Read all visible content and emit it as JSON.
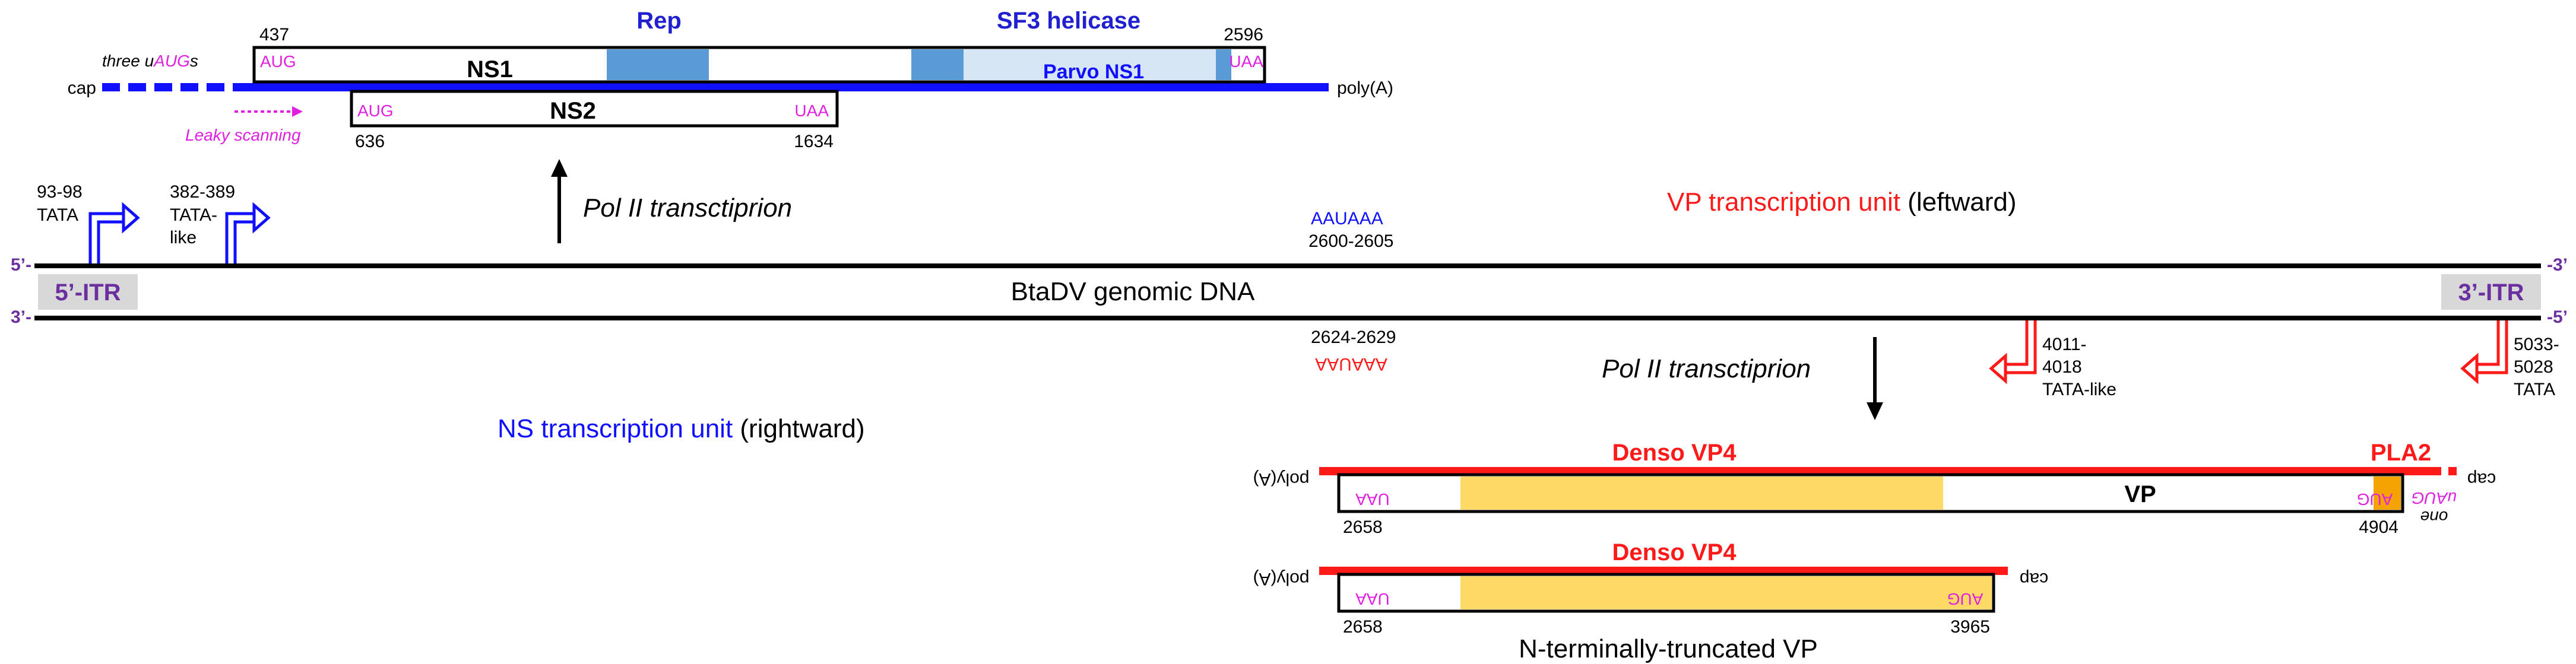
{
  "colors": {
    "black": "#000000",
    "blue": "#1010ff",
    "blue_dark": "#2020d0",
    "red": "#ff1a1a",
    "magenta": "#e020e0",
    "purple": "#6b2fa0",
    "itr_fill": "#d8d8d8",
    "ns1_domain": "#5b9bd5",
    "parvo_fill": "#d6e6f5",
    "vp_fill": "#ffd966",
    "orange": "#f4a300"
  },
  "ns": {
    "num_437": "437",
    "num_2596": "2596",
    "num_636": "636",
    "num_1634": "1634",
    "rep": "Rep",
    "sf3": "SF3 helicase",
    "ns1": "NS1",
    "ns2": "NS2",
    "parvo": "Parvo NS1",
    "aug1": "AUG",
    "uaa1": "UAA",
    "aug2": "AUG",
    "uaa2": "UAA",
    "cap": "cap",
    "polya": "poly(A)",
    "three_uaugs_prefix": "three u",
    "three_uaugs_aug": "AUG",
    "three_uaugs_suffix": "s",
    "leaky": "Leaky scanning",
    "pol2": "Pol II transctiprion"
  },
  "genome": {
    "tata1_pos": "93-98",
    "tata1_label": "TATA",
    "tata2_pos": "382-389",
    "tata2_line1": "TATA-",
    "tata2_line2": "like",
    "aauaaa_fwd": "AAUAAA",
    "aauaaa_fwd_pos": "2600-2605",
    "vp_unit_colored": "VP  transcription unit",
    "vp_unit_rest": " (leftward)",
    "ns_unit_colored": "NS  transcription unit",
    "ns_unit_rest": " (rightward)",
    "five_top": "5’-",
    "three_bottom_left": "3’-",
    "top_right_end": "-3’",
    "bottom_right_end": "-5’",
    "itr_left": "5’-ITR",
    "itr_right": "3’-ITR",
    "genome_label": "BtaDV genomic DNA",
    "aauaaa_rev_pos": "2624-2629",
    "aauaaa_rev": "AAUAAA",
    "tata3_l1": "4011-",
    "tata3_l2": "4018",
    "tata3_l3": "TATA-like",
    "tata4_l1": "5033-",
    "tata4_l2": "5028",
    "tata4_l3": "TATA",
    "pol2_vp": "Pol II transctiprion"
  },
  "vp": {
    "denso_vp4": "Denso VP4",
    "pla2": "PLA2",
    "vp_label": "VP",
    "polya": "poly(A)",
    "cap": "cap",
    "uaa": "UAA",
    "aug": "AUG",
    "one_uaug_l1": "one",
    "one_uaug_l2": "uAUG",
    "num_2658": "2658",
    "num_4904": "4904",
    "denso_vp4_2": "Denso VP4",
    "polya2": "poly(A)",
    "cap2": "cap",
    "uaa2": "UAA",
    "aug2": "AUG",
    "num_2658_2": "2658",
    "num_3965": "3965",
    "trunc_label": "N-terminally-truncated VP"
  }
}
